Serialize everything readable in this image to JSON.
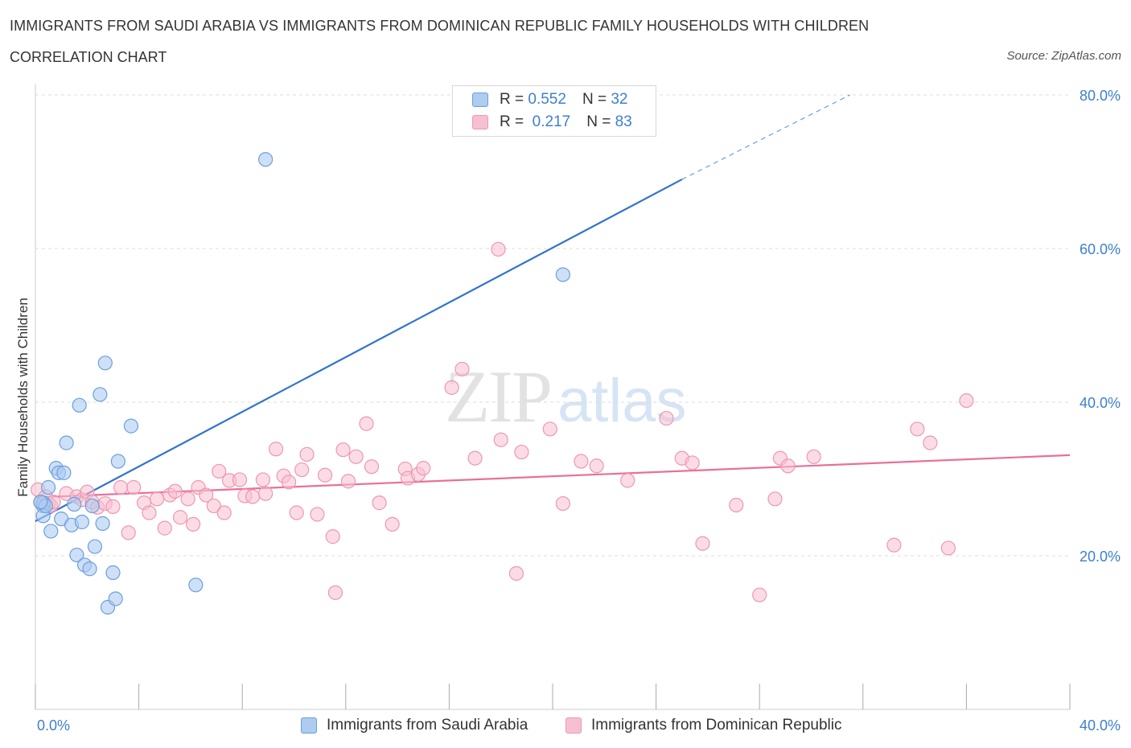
{
  "header": {
    "title": "IMMIGRANTS FROM SAUDI ARABIA VS IMMIGRANTS FROM DOMINICAN REPUBLIC FAMILY HOUSEHOLDS WITH CHILDREN",
    "subtitle": "CORRELATION CHART",
    "source": "Source: ZipAtlas.com"
  },
  "watermark": {
    "left": "ZIP",
    "right": "atlas"
  },
  "legend": {
    "rows": [
      {
        "r_label": "R =",
        "r_value": "0.552",
        "n_label": "N =",
        "n_value": "32"
      },
      {
        "r_label": "R =",
        "r_value": "0.217",
        "n_label": "N =",
        "n_value": "83"
      }
    ]
  },
  "bottom_legend": {
    "series_a": "Immigrants from Saudi Arabia",
    "series_b": "Immigrants from Dominican Republic"
  },
  "colors": {
    "series_a_fill": "#aecbf0",
    "series_a_stroke": "#6b9fdf",
    "series_a_line": "#2f74cf",
    "series_b_fill": "#f7c0d0",
    "series_b_stroke": "#ee97b2",
    "series_b_line": "#e8709a",
    "grid": "#dddddd",
    "tick_text": "#3d7fcf"
  },
  "chart_data": {
    "type": "scatter",
    "title": "IMMIGRANTS FROM SAUDI ARABIA VS IMMIGRANTS FROM DOMINICAN REPUBLIC FAMILY HOUSEHOLDS WITH CHILDREN",
    "xlabel": "",
    "ylabel": "Family Households with Children",
    "xlim": [
      0,
      40
    ],
    "ylim": [
      0,
      80
    ],
    "x_ticks": [
      "0.0%",
      "40.0%"
    ],
    "y_ticks": [
      {
        "value": 20,
        "label": "20.0%"
      },
      {
        "value": 40,
        "label": "40.0%"
      },
      {
        "value": 60,
        "label": "60.0%"
      },
      {
        "value": 80,
        "label": "80.0%"
      }
    ],
    "grid": true,
    "series": [
      {
        "name": "Immigrants from Saudi Arabia",
        "R": 0.552,
        "N": 32,
        "trend": {
          "x": [
            0,
            25
          ],
          "y": [
            24.5,
            69.0
          ],
          "dashed_to": {
            "x": 31.5,
            "y": 80.0
          }
        },
        "points": [
          [
            0.3,
            26.5
          ],
          [
            0.3,
            25.2
          ],
          [
            0.3,
            26.9
          ],
          [
            0.4,
            26.5
          ],
          [
            0.5,
            28.9
          ],
          [
            0.6,
            23.2
          ],
          [
            0.8,
            31.4
          ],
          [
            0.9,
            30.8
          ],
          [
            1.0,
            24.8
          ],
          [
            1.1,
            30.8
          ],
          [
            1.2,
            34.7
          ],
          [
            1.4,
            24.0
          ],
          [
            1.5,
            26.7
          ],
          [
            1.6,
            20.1
          ],
          [
            1.7,
            39.6
          ],
          [
            1.8,
            24.4
          ],
          [
            1.9,
            18.8
          ],
          [
            2.1,
            18.3
          ],
          [
            2.2,
            26.5
          ],
          [
            2.3,
            21.2
          ],
          [
            2.5,
            41.0
          ],
          [
            2.6,
            24.2
          ],
          [
            2.7,
            45.1
          ],
          [
            2.8,
            13.3
          ],
          [
            3.0,
            17.8
          ],
          [
            3.1,
            14.4
          ],
          [
            3.2,
            32.3
          ],
          [
            3.7,
            36.9
          ],
          [
            6.2,
            16.2
          ],
          [
            8.9,
            71.6
          ],
          [
            20.4,
            56.6
          ],
          [
            0.2,
            27.0
          ]
        ]
      },
      {
        "name": "Immigrants from Dominican Republic",
        "R": 0.217,
        "N": 83,
        "trend": {
          "x": [
            0,
            40
          ],
          "y": [
            27.6,
            33.1
          ]
        },
        "points": [
          [
            0.1,
            28.6
          ],
          [
            0.2,
            27.0
          ],
          [
            0.4,
            27.7
          ],
          [
            0.5,
            26.8
          ],
          [
            0.6,
            26.5
          ],
          [
            0.7,
            27.0
          ],
          [
            1.2,
            28.1
          ],
          [
            1.6,
            27.7
          ],
          [
            1.8,
            27.3
          ],
          [
            2.0,
            28.3
          ],
          [
            2.2,
            27.0
          ],
          [
            2.4,
            26.3
          ],
          [
            2.7,
            26.8
          ],
          [
            3.0,
            26.4
          ],
          [
            3.3,
            28.9
          ],
          [
            3.6,
            23.0
          ],
          [
            3.8,
            28.9
          ],
          [
            4.2,
            26.9
          ],
          [
            4.4,
            25.6
          ],
          [
            4.7,
            27.4
          ],
          [
            5.0,
            23.6
          ],
          [
            5.2,
            27.9
          ],
          [
            5.4,
            28.4
          ],
          [
            5.6,
            25.0
          ],
          [
            5.9,
            27.4
          ],
          [
            6.1,
            24.1
          ],
          [
            6.3,
            28.9
          ],
          [
            6.6,
            27.9
          ],
          [
            6.9,
            26.5
          ],
          [
            7.1,
            31.0
          ],
          [
            7.3,
            25.6
          ],
          [
            7.5,
            29.8
          ],
          [
            7.9,
            29.9
          ],
          [
            8.1,
            27.8
          ],
          [
            8.4,
            27.7
          ],
          [
            8.8,
            29.9
          ],
          [
            8.9,
            28.1
          ],
          [
            9.3,
            33.9
          ],
          [
            9.6,
            30.4
          ],
          [
            9.8,
            29.6
          ],
          [
            10.1,
            25.6
          ],
          [
            10.3,
            31.2
          ],
          [
            10.5,
            33.2
          ],
          [
            10.9,
            25.4
          ],
          [
            11.2,
            30.5
          ],
          [
            11.5,
            22.5
          ],
          [
            11.6,
            15.2
          ],
          [
            11.9,
            33.8
          ],
          [
            12.1,
            29.7
          ],
          [
            12.4,
            32.9
          ],
          [
            12.8,
            37.2
          ],
          [
            13.0,
            31.6
          ],
          [
            13.3,
            26.9
          ],
          [
            13.8,
            24.1
          ],
          [
            14.3,
            31.3
          ],
          [
            14.4,
            30.1
          ],
          [
            14.8,
            30.6
          ],
          [
            15.0,
            31.4
          ],
          [
            16.1,
            41.9
          ],
          [
            16.5,
            44.3
          ],
          [
            17.0,
            32.7
          ],
          [
            17.9,
            59.9
          ],
          [
            18.0,
            35.1
          ],
          [
            18.6,
            17.7
          ],
          [
            18.8,
            33.5
          ],
          [
            19.9,
            36.5
          ],
          [
            20.4,
            26.8
          ],
          [
            21.1,
            32.3
          ],
          [
            21.7,
            31.7
          ],
          [
            22.9,
            29.8
          ],
          [
            24.4,
            37.9
          ],
          [
            25.0,
            32.7
          ],
          [
            25.4,
            32.1
          ],
          [
            25.8,
            21.6
          ],
          [
            27.1,
            26.6
          ],
          [
            28.0,
            14.9
          ],
          [
            28.6,
            27.4
          ],
          [
            28.8,
            32.7
          ],
          [
            29.1,
            31.7
          ],
          [
            30.1,
            32.9
          ],
          [
            33.2,
            21.4
          ],
          [
            34.1,
            36.5
          ],
          [
            35.3,
            21.0
          ],
          [
            36.0,
            40.2
          ],
          [
            34.6,
            34.7
          ]
        ]
      }
    ]
  }
}
